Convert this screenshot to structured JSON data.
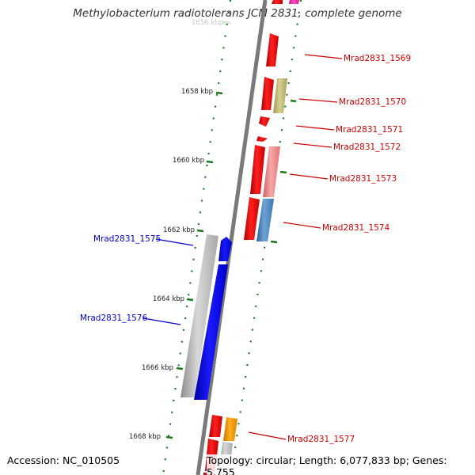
{
  "title": "Methylobacterium radiotolerans JCM 2831, complete genome",
  "footer": {
    "accession": "Accession: NC_010505",
    "summary": "Topology: circular; Length: 6,077,833 bp; Genes: 5,755"
  },
  "ruler": {
    "ticks": [
      {
        "label": "1656 kbp",
        "faded": true
      },
      {
        "label": "1658 kbp"
      },
      {
        "label": "1660 kbp"
      },
      {
        "label": "1662 kbp"
      },
      {
        "label": "1664 kbp"
      },
      {
        "label": "1666 kbp"
      },
      {
        "label": "1668 kbp"
      }
    ]
  },
  "genes": [
    {
      "label": "Mrad2831_1569",
      "color": "#cc0000",
      "strand": "forward"
    },
    {
      "label": "Mrad2831_1570",
      "color": "#cc0000",
      "strand": "forward"
    },
    {
      "label": "Mrad2831_1571",
      "color": "#cc0000",
      "strand": "forward"
    },
    {
      "label": "Mrad2831_1572",
      "color": "#cc0000",
      "strand": "forward"
    },
    {
      "label": "Mrad2831_1573",
      "color": "#cc0000",
      "strand": "forward"
    },
    {
      "label": "Mrad2831_1574",
      "color": "#cc0000",
      "strand": "forward"
    },
    {
      "label": "Mrad2831_1575",
      "color": "#0000cc",
      "strand": "reverse"
    },
    {
      "label": "Mrad2831_1576",
      "color": "#0000cc",
      "strand": "reverse"
    },
    {
      "label": "Mrad2831_1577",
      "color": "#cc0000",
      "strand": "forward"
    }
  ],
  "colors": {
    "forward_cds": "#ee0000",
    "reverse_cds": "#0000ee",
    "backbone": "#7a7a7a",
    "tick": "#1a7a1a",
    "forward_label": "#cc0000",
    "reverse_label": "#0000cc",
    "cog_olive": "#c2ba78",
    "cog_salmon": "#ee8888",
    "cog_steel": "#4f87c0",
    "cog_gray": "#b5b5b5",
    "cog_orange": "#f39a00",
    "cog_magenta": "#ee22aa"
  }
}
